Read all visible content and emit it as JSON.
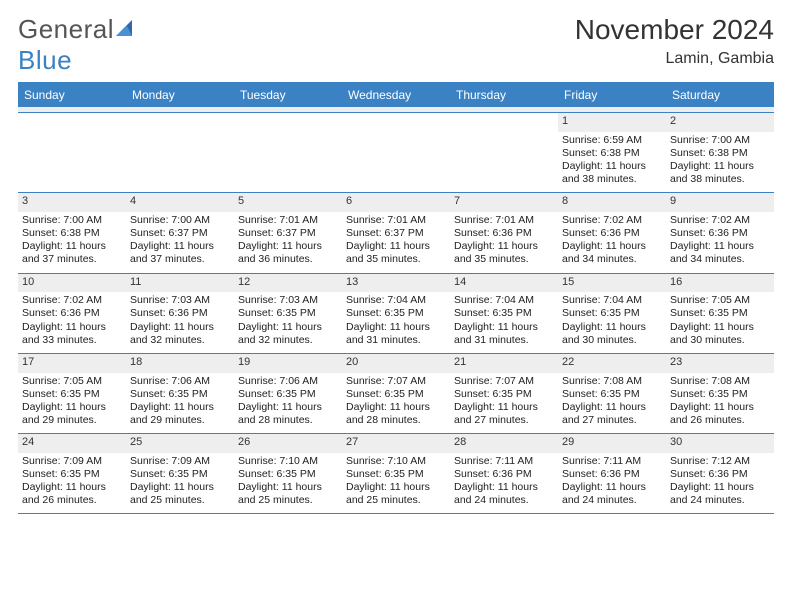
{
  "logo": {
    "word1": "General",
    "word2": "Blue"
  },
  "title": {
    "month": "November 2024",
    "location": "Lamin, Gambia"
  },
  "colors": {
    "accent": "#3b82c4",
    "grey": "#eeeeee"
  },
  "dow": [
    "Sunday",
    "Monday",
    "Tuesday",
    "Wednesday",
    "Thursday",
    "Friday",
    "Saturday"
  ],
  "weeks": [
    [
      null,
      null,
      null,
      null,
      null,
      {
        "n": "1",
        "sunrise": "Sunrise: 6:59 AM",
        "sunset": "Sunset: 6:38 PM",
        "daylight": "Daylight: 11 hours and 38 minutes."
      },
      {
        "n": "2",
        "sunrise": "Sunrise: 7:00 AM",
        "sunset": "Sunset: 6:38 PM",
        "daylight": "Daylight: 11 hours and 38 minutes."
      }
    ],
    [
      {
        "n": "3",
        "sunrise": "Sunrise: 7:00 AM",
        "sunset": "Sunset: 6:38 PM",
        "daylight": "Daylight: 11 hours and 37 minutes."
      },
      {
        "n": "4",
        "sunrise": "Sunrise: 7:00 AM",
        "sunset": "Sunset: 6:37 PM",
        "daylight": "Daylight: 11 hours and 37 minutes."
      },
      {
        "n": "5",
        "sunrise": "Sunrise: 7:01 AM",
        "sunset": "Sunset: 6:37 PM",
        "daylight": "Daylight: 11 hours and 36 minutes."
      },
      {
        "n": "6",
        "sunrise": "Sunrise: 7:01 AM",
        "sunset": "Sunset: 6:37 PM",
        "daylight": "Daylight: 11 hours and 35 minutes."
      },
      {
        "n": "7",
        "sunrise": "Sunrise: 7:01 AM",
        "sunset": "Sunset: 6:36 PM",
        "daylight": "Daylight: 11 hours and 35 minutes."
      },
      {
        "n": "8",
        "sunrise": "Sunrise: 7:02 AM",
        "sunset": "Sunset: 6:36 PM",
        "daylight": "Daylight: 11 hours and 34 minutes."
      },
      {
        "n": "9",
        "sunrise": "Sunrise: 7:02 AM",
        "sunset": "Sunset: 6:36 PM",
        "daylight": "Daylight: 11 hours and 34 minutes."
      }
    ],
    [
      {
        "n": "10",
        "sunrise": "Sunrise: 7:02 AM",
        "sunset": "Sunset: 6:36 PM",
        "daylight": "Daylight: 11 hours and 33 minutes."
      },
      {
        "n": "11",
        "sunrise": "Sunrise: 7:03 AM",
        "sunset": "Sunset: 6:36 PM",
        "daylight": "Daylight: 11 hours and 32 minutes."
      },
      {
        "n": "12",
        "sunrise": "Sunrise: 7:03 AM",
        "sunset": "Sunset: 6:35 PM",
        "daylight": "Daylight: 11 hours and 32 minutes."
      },
      {
        "n": "13",
        "sunrise": "Sunrise: 7:04 AM",
        "sunset": "Sunset: 6:35 PM",
        "daylight": "Daylight: 11 hours and 31 minutes."
      },
      {
        "n": "14",
        "sunrise": "Sunrise: 7:04 AM",
        "sunset": "Sunset: 6:35 PM",
        "daylight": "Daylight: 11 hours and 31 minutes."
      },
      {
        "n": "15",
        "sunrise": "Sunrise: 7:04 AM",
        "sunset": "Sunset: 6:35 PM",
        "daylight": "Daylight: 11 hours and 30 minutes."
      },
      {
        "n": "16",
        "sunrise": "Sunrise: 7:05 AM",
        "sunset": "Sunset: 6:35 PM",
        "daylight": "Daylight: 11 hours and 30 minutes."
      }
    ],
    [
      {
        "n": "17",
        "sunrise": "Sunrise: 7:05 AM",
        "sunset": "Sunset: 6:35 PM",
        "daylight": "Daylight: 11 hours and 29 minutes."
      },
      {
        "n": "18",
        "sunrise": "Sunrise: 7:06 AM",
        "sunset": "Sunset: 6:35 PM",
        "daylight": "Daylight: 11 hours and 29 minutes."
      },
      {
        "n": "19",
        "sunrise": "Sunrise: 7:06 AM",
        "sunset": "Sunset: 6:35 PM",
        "daylight": "Daylight: 11 hours and 28 minutes."
      },
      {
        "n": "20",
        "sunrise": "Sunrise: 7:07 AM",
        "sunset": "Sunset: 6:35 PM",
        "daylight": "Daylight: 11 hours and 28 minutes."
      },
      {
        "n": "21",
        "sunrise": "Sunrise: 7:07 AM",
        "sunset": "Sunset: 6:35 PM",
        "daylight": "Daylight: 11 hours and 27 minutes."
      },
      {
        "n": "22",
        "sunrise": "Sunrise: 7:08 AM",
        "sunset": "Sunset: 6:35 PM",
        "daylight": "Daylight: 11 hours and 27 minutes."
      },
      {
        "n": "23",
        "sunrise": "Sunrise: 7:08 AM",
        "sunset": "Sunset: 6:35 PM",
        "daylight": "Daylight: 11 hours and 26 minutes."
      }
    ],
    [
      {
        "n": "24",
        "sunrise": "Sunrise: 7:09 AM",
        "sunset": "Sunset: 6:35 PM",
        "daylight": "Daylight: 11 hours and 26 minutes."
      },
      {
        "n": "25",
        "sunrise": "Sunrise: 7:09 AM",
        "sunset": "Sunset: 6:35 PM",
        "daylight": "Daylight: 11 hours and 25 minutes."
      },
      {
        "n": "26",
        "sunrise": "Sunrise: 7:10 AM",
        "sunset": "Sunset: 6:35 PM",
        "daylight": "Daylight: 11 hours and 25 minutes."
      },
      {
        "n": "27",
        "sunrise": "Sunrise: 7:10 AM",
        "sunset": "Sunset: 6:35 PM",
        "daylight": "Daylight: 11 hours and 25 minutes."
      },
      {
        "n": "28",
        "sunrise": "Sunrise: 7:11 AM",
        "sunset": "Sunset: 6:36 PM",
        "daylight": "Daylight: 11 hours and 24 minutes."
      },
      {
        "n": "29",
        "sunrise": "Sunrise: 7:11 AM",
        "sunset": "Sunset: 6:36 PM",
        "daylight": "Daylight: 11 hours and 24 minutes."
      },
      {
        "n": "30",
        "sunrise": "Sunrise: 7:12 AM",
        "sunset": "Sunset: 6:36 PM",
        "daylight": "Daylight: 11 hours and 24 minutes."
      }
    ]
  ]
}
